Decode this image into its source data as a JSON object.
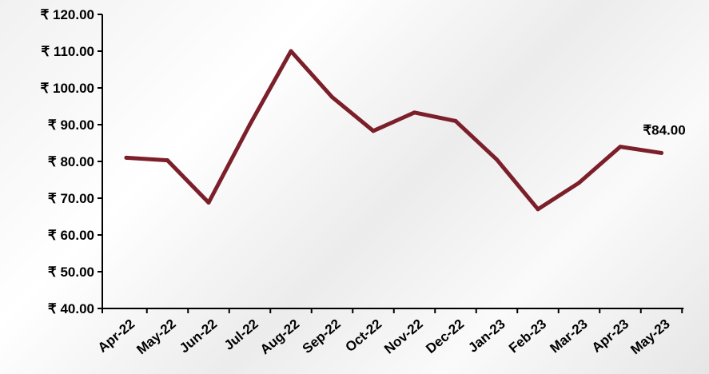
{
  "chart_data": {
    "type": "line",
    "categories": [
      "Apr-22",
      "May-22",
      "Jun-22",
      "Jul-22",
      "Aug-22",
      "Sep-22",
      "Oct-22",
      "Nov-22",
      "Dec-22",
      "Jan-23",
      "Feb-23",
      "Mar-23",
      "Apr-23",
      "May-23"
    ],
    "series": [
      {
        "values": [
          81.0,
          80.3,
          68.8,
          90.0,
          110.0,
          97.5,
          88.3,
          93.3,
          91.0,
          80.5,
          67.0,
          74.2,
          84.0,
          82.3
        ]
      }
    ],
    "y_tick_labels": [
      "₹ 40.00",
      "₹ 50.00",
      "₹ 60.00",
      "₹ 70.00",
      "₹ 80.00",
      "₹ 90.00",
      "₹ 100.00",
      "₹ 110.00",
      "₹ 120.00"
    ],
    "ylim": [
      40,
      120
    ],
    "y_step": 10,
    "data_label": {
      "index": 12,
      "text": "₹84.00"
    },
    "line_color": "#7b1f2a",
    "axis_color": "#000000",
    "grid": false,
    "legend": "none"
  }
}
